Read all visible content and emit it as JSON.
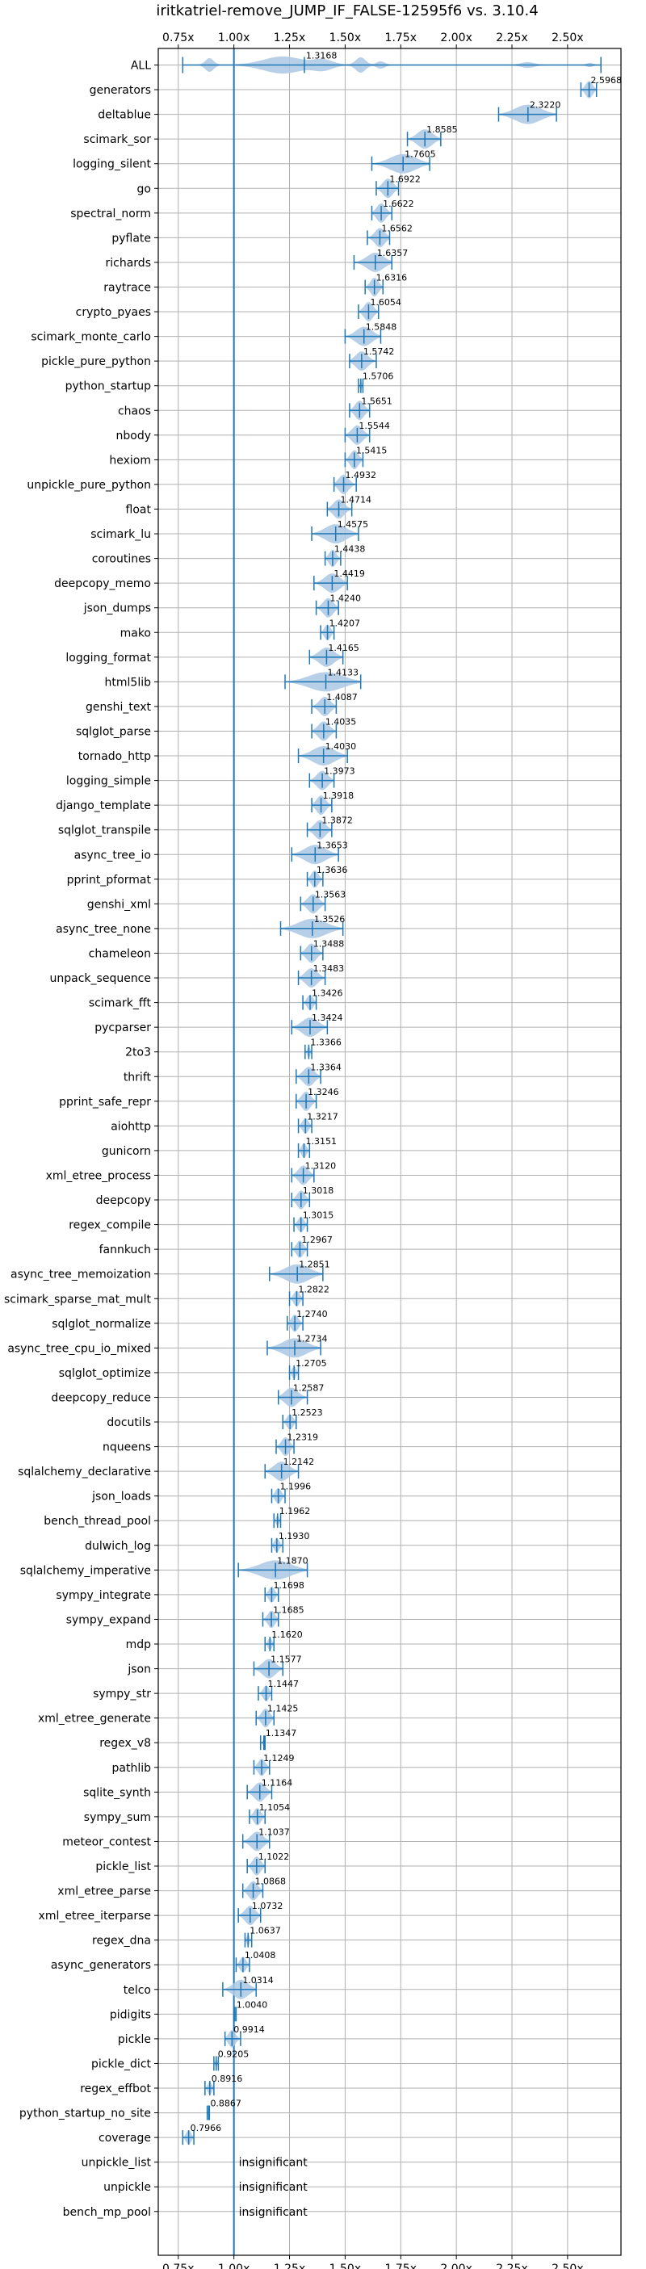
{
  "chart_data": {
    "type": "violin",
    "title": "iritkatriel-remove_JUMP_IF_FALSE-12595f6 vs. 3.10.4",
    "xlim": [
      0.66,
      2.74
    ],
    "x_ticks": [
      0.75,
      1.0,
      1.25,
      1.5,
      1.75,
      2.0,
      2.25,
      2.5
    ],
    "x_tick_labels": [
      "0.75x",
      "1.00x",
      "1.25x",
      "1.50x",
      "1.75x",
      "2.00x",
      "2.25x",
      "2.50x"
    ],
    "reference_line": 1.0,
    "grid": true,
    "colors": {
      "violin": "#aac8e4",
      "line": "#1f77b4"
    },
    "benchmarks": [
      {
        "name": "ALL",
        "mean": 1.3168,
        "min": 0.77,
        "max": 2.65,
        "label": "1.3168"
      },
      {
        "name": "generators",
        "mean": 2.5968,
        "min": 2.56,
        "max": 2.63,
        "label": "2.5968"
      },
      {
        "name": "deltablue",
        "mean": 2.322,
        "min": 2.19,
        "max": 2.45,
        "label": "2.3220"
      },
      {
        "name": "scimark_sor",
        "mean": 1.8585,
        "min": 1.78,
        "max": 1.93,
        "label": "1.8585"
      },
      {
        "name": "logging_silent",
        "mean": 1.7605,
        "min": 1.62,
        "max": 1.88,
        "label": "1.7605"
      },
      {
        "name": "go",
        "mean": 1.6922,
        "min": 1.64,
        "max": 1.74,
        "label": "1.6922"
      },
      {
        "name": "spectral_norm",
        "mean": 1.6622,
        "min": 1.62,
        "max": 1.71,
        "label": "1.6622"
      },
      {
        "name": "pyflate",
        "mean": 1.6562,
        "min": 1.6,
        "max": 1.7,
        "label": "1.6562"
      },
      {
        "name": "richards",
        "mean": 1.6357,
        "min": 1.54,
        "max": 1.71,
        "label": "1.6357"
      },
      {
        "name": "raytrace",
        "mean": 1.6316,
        "min": 1.59,
        "max": 1.67,
        "label": "1.6316"
      },
      {
        "name": "crypto_pyaes",
        "mean": 1.6054,
        "min": 1.56,
        "max": 1.65,
        "label": "1.6054"
      },
      {
        "name": "scimark_monte_carlo",
        "mean": 1.5848,
        "min": 1.5,
        "max": 1.66,
        "label": "1.5848"
      },
      {
        "name": "pickle_pure_python",
        "mean": 1.5742,
        "min": 1.52,
        "max": 1.64,
        "label": "1.5742"
      },
      {
        "name": "python_startup",
        "mean": 1.5706,
        "min": 1.56,
        "max": 1.58,
        "label": "1.5706"
      },
      {
        "name": "chaos",
        "mean": 1.5651,
        "min": 1.52,
        "max": 1.61,
        "label": "1.5651"
      },
      {
        "name": "nbody",
        "mean": 1.5544,
        "min": 1.5,
        "max": 1.61,
        "label": "1.5544"
      },
      {
        "name": "hexiom",
        "mean": 1.5415,
        "min": 1.5,
        "max": 1.58,
        "label": "1.5415"
      },
      {
        "name": "unpickle_pure_python",
        "mean": 1.4932,
        "min": 1.45,
        "max": 1.55,
        "label": "1.4932"
      },
      {
        "name": "float",
        "mean": 1.4714,
        "min": 1.42,
        "max": 1.53,
        "label": "1.4714"
      },
      {
        "name": "scimark_lu",
        "mean": 1.4575,
        "min": 1.35,
        "max": 1.56,
        "label": "1.4575"
      },
      {
        "name": "coroutines",
        "mean": 1.4438,
        "min": 1.41,
        "max": 1.48,
        "label": "1.4438"
      },
      {
        "name": "deepcopy_memo",
        "mean": 1.4419,
        "min": 1.36,
        "max": 1.51,
        "label": "1.4419"
      },
      {
        "name": "json_dumps",
        "mean": 1.424,
        "min": 1.37,
        "max": 1.47,
        "label": "1.4240"
      },
      {
        "name": "mako",
        "mean": 1.4207,
        "min": 1.39,
        "max": 1.45,
        "label": "1.4207"
      },
      {
        "name": "logging_format",
        "mean": 1.4165,
        "min": 1.34,
        "max": 1.49,
        "label": "1.4165"
      },
      {
        "name": "html5lib",
        "mean": 1.4133,
        "min": 1.23,
        "max": 1.57,
        "label": "1.4133"
      },
      {
        "name": "genshi_text",
        "mean": 1.4087,
        "min": 1.35,
        "max": 1.46,
        "label": "1.4087"
      },
      {
        "name": "sqlglot_parse",
        "mean": 1.4035,
        "min": 1.35,
        "max": 1.46,
        "label": "1.4035"
      },
      {
        "name": "tornado_http",
        "mean": 1.403,
        "min": 1.29,
        "max": 1.51,
        "label": "1.4030"
      },
      {
        "name": "logging_simple",
        "mean": 1.3973,
        "min": 1.34,
        "max": 1.45,
        "label": "1.3973"
      },
      {
        "name": "django_template",
        "mean": 1.3918,
        "min": 1.35,
        "max": 1.44,
        "label": "1.3918"
      },
      {
        "name": "sqlglot_transpile",
        "mean": 1.3872,
        "min": 1.33,
        "max": 1.44,
        "label": "1.3872"
      },
      {
        "name": "async_tree_io",
        "mean": 1.3653,
        "min": 1.26,
        "max": 1.47,
        "label": "1.3653"
      },
      {
        "name": "pprint_pformat",
        "mean": 1.3636,
        "min": 1.33,
        "max": 1.4,
        "label": "1.3636"
      },
      {
        "name": "genshi_xml",
        "mean": 1.3563,
        "min": 1.3,
        "max": 1.41,
        "label": "1.3563"
      },
      {
        "name": "async_tree_none",
        "mean": 1.3526,
        "min": 1.21,
        "max": 1.49,
        "label": "1.3526"
      },
      {
        "name": "chameleon",
        "mean": 1.3488,
        "min": 1.3,
        "max": 1.4,
        "label": "1.3488"
      },
      {
        "name": "unpack_sequence",
        "mean": 1.3483,
        "min": 1.29,
        "max": 1.41,
        "label": "1.3483"
      },
      {
        "name": "scimark_fft",
        "mean": 1.3426,
        "min": 1.31,
        "max": 1.37,
        "label": "1.3426"
      },
      {
        "name": "pycparser",
        "mean": 1.3424,
        "min": 1.26,
        "max": 1.42,
        "label": "1.3424"
      },
      {
        "name": "2to3",
        "mean": 1.3366,
        "min": 1.32,
        "max": 1.35,
        "label": "1.3366"
      },
      {
        "name": "thrift",
        "mean": 1.3364,
        "min": 1.28,
        "max": 1.39,
        "label": "1.3364"
      },
      {
        "name": "pprint_safe_repr",
        "mean": 1.3246,
        "min": 1.28,
        "max": 1.37,
        "label": "1.3246"
      },
      {
        "name": "aiohttp",
        "mean": 1.3217,
        "min": 1.29,
        "max": 1.35,
        "label": "1.3217"
      },
      {
        "name": "gunicorn",
        "mean": 1.3151,
        "min": 1.29,
        "max": 1.34,
        "label": "1.3151"
      },
      {
        "name": "xml_etree_process",
        "mean": 1.312,
        "min": 1.26,
        "max": 1.36,
        "label": "1.3120"
      },
      {
        "name": "deepcopy",
        "mean": 1.3018,
        "min": 1.26,
        "max": 1.34,
        "label": "1.3018"
      },
      {
        "name": "regex_compile",
        "mean": 1.3015,
        "min": 1.27,
        "max": 1.33,
        "label": "1.3015"
      },
      {
        "name": "fannkuch",
        "mean": 1.2967,
        "min": 1.26,
        "max": 1.33,
        "label": "1.2967"
      },
      {
        "name": "async_tree_memoization",
        "mean": 1.2851,
        "min": 1.16,
        "max": 1.4,
        "label": "1.2851"
      },
      {
        "name": "scimark_sparse_mat_mult",
        "mean": 1.2822,
        "min": 1.25,
        "max": 1.31,
        "label": "1.2822"
      },
      {
        "name": "sqlglot_normalize",
        "mean": 1.274,
        "min": 1.24,
        "max": 1.31,
        "label": "1.2740"
      },
      {
        "name": "async_tree_cpu_io_mixed",
        "mean": 1.2734,
        "min": 1.15,
        "max": 1.39,
        "label": "1.2734"
      },
      {
        "name": "sqlglot_optimize",
        "mean": 1.2705,
        "min": 1.25,
        "max": 1.29,
        "label": "1.2705"
      },
      {
        "name": "deepcopy_reduce",
        "mean": 1.2587,
        "min": 1.2,
        "max": 1.33,
        "label": "1.2587"
      },
      {
        "name": "docutils",
        "mean": 1.2523,
        "min": 1.22,
        "max": 1.28,
        "label": "1.2523"
      },
      {
        "name": "nqueens",
        "mean": 1.2319,
        "min": 1.19,
        "max": 1.27,
        "label": "1.2319"
      },
      {
        "name": "sqlalchemy_declarative",
        "mean": 1.2142,
        "min": 1.14,
        "max": 1.29,
        "label": "1.2142"
      },
      {
        "name": "json_loads",
        "mean": 1.1996,
        "min": 1.17,
        "max": 1.23,
        "label": "1.1996"
      },
      {
        "name": "bench_thread_pool",
        "mean": 1.1962,
        "min": 1.18,
        "max": 1.21,
        "label": "1.1962"
      },
      {
        "name": "dulwich_log",
        "mean": 1.193,
        "min": 1.17,
        "max": 1.22,
        "label": "1.1930"
      },
      {
        "name": "sqlalchemy_imperative",
        "mean": 1.187,
        "min": 1.02,
        "max": 1.33,
        "label": "1.1870"
      },
      {
        "name": "sympy_integrate",
        "mean": 1.1698,
        "min": 1.14,
        "max": 1.2,
        "label": "1.1698"
      },
      {
        "name": "sympy_expand",
        "mean": 1.1685,
        "min": 1.13,
        "max": 1.2,
        "label": "1.1685"
      },
      {
        "name": "mdp",
        "mean": 1.162,
        "min": 1.14,
        "max": 1.18,
        "label": "1.1620"
      },
      {
        "name": "json",
        "mean": 1.1577,
        "min": 1.09,
        "max": 1.22,
        "label": "1.1577"
      },
      {
        "name": "sympy_str",
        "mean": 1.1447,
        "min": 1.11,
        "max": 1.17,
        "label": "1.1447"
      },
      {
        "name": "xml_etree_generate",
        "mean": 1.1425,
        "min": 1.1,
        "max": 1.18,
        "label": "1.1425"
      },
      {
        "name": "regex_v8",
        "mean": 1.1347,
        "min": 1.12,
        "max": 1.14,
        "label": "1.1347"
      },
      {
        "name": "pathlib",
        "mean": 1.1249,
        "min": 1.09,
        "max": 1.16,
        "label": "1.1249"
      },
      {
        "name": "sqlite_synth",
        "mean": 1.1164,
        "min": 1.06,
        "max": 1.17,
        "label": "1.1164"
      },
      {
        "name": "sympy_sum",
        "mean": 1.1054,
        "min": 1.07,
        "max": 1.14,
        "label": "1.1054"
      },
      {
        "name": "meteor_contest",
        "mean": 1.1037,
        "min": 1.04,
        "max": 1.16,
        "label": "1.1037"
      },
      {
        "name": "pickle_list",
        "mean": 1.1022,
        "min": 1.06,
        "max": 1.14,
        "label": "1.1022"
      },
      {
        "name": "xml_etree_parse",
        "mean": 1.0868,
        "min": 1.04,
        "max": 1.13,
        "label": "1.0868"
      },
      {
        "name": "xml_etree_iterparse",
        "mean": 1.0732,
        "min": 1.02,
        "max": 1.12,
        "label": "1.0732"
      },
      {
        "name": "regex_dna",
        "mean": 1.0637,
        "min": 1.05,
        "max": 1.08,
        "label": "1.0637"
      },
      {
        "name": "async_generators",
        "mean": 1.0408,
        "min": 1.01,
        "max": 1.07,
        "label": "1.0408"
      },
      {
        "name": "telco",
        "mean": 1.0314,
        "min": 0.95,
        "max": 1.1,
        "label": "1.0314"
      },
      {
        "name": "pidigits",
        "mean": 1.004,
        "min": 1.0,
        "max": 1.01,
        "label": "1.0040"
      },
      {
        "name": "pickle",
        "mean": 0.9914,
        "min": 0.96,
        "max": 1.03,
        "label": "0.9914"
      },
      {
        "name": "pickle_dict",
        "mean": 0.9205,
        "min": 0.91,
        "max": 0.93,
        "label": "0.9205"
      },
      {
        "name": "regex_effbot",
        "mean": 0.8916,
        "min": 0.87,
        "max": 0.91,
        "label": "0.8916"
      },
      {
        "name": "python_startup_no_site",
        "mean": 0.8867,
        "min": 0.88,
        "max": 0.89,
        "label": "0.8867"
      },
      {
        "name": "coverage",
        "mean": 0.7966,
        "min": 0.77,
        "max": 0.82,
        "label": "0.7966"
      },
      {
        "name": "unpickle_list",
        "mean": null,
        "label": "insignificant"
      },
      {
        "name": "unpickle",
        "mean": null,
        "label": "insignificant"
      },
      {
        "name": "bench_mp_pool",
        "mean": null,
        "label": "insignificant"
      }
    ]
  }
}
